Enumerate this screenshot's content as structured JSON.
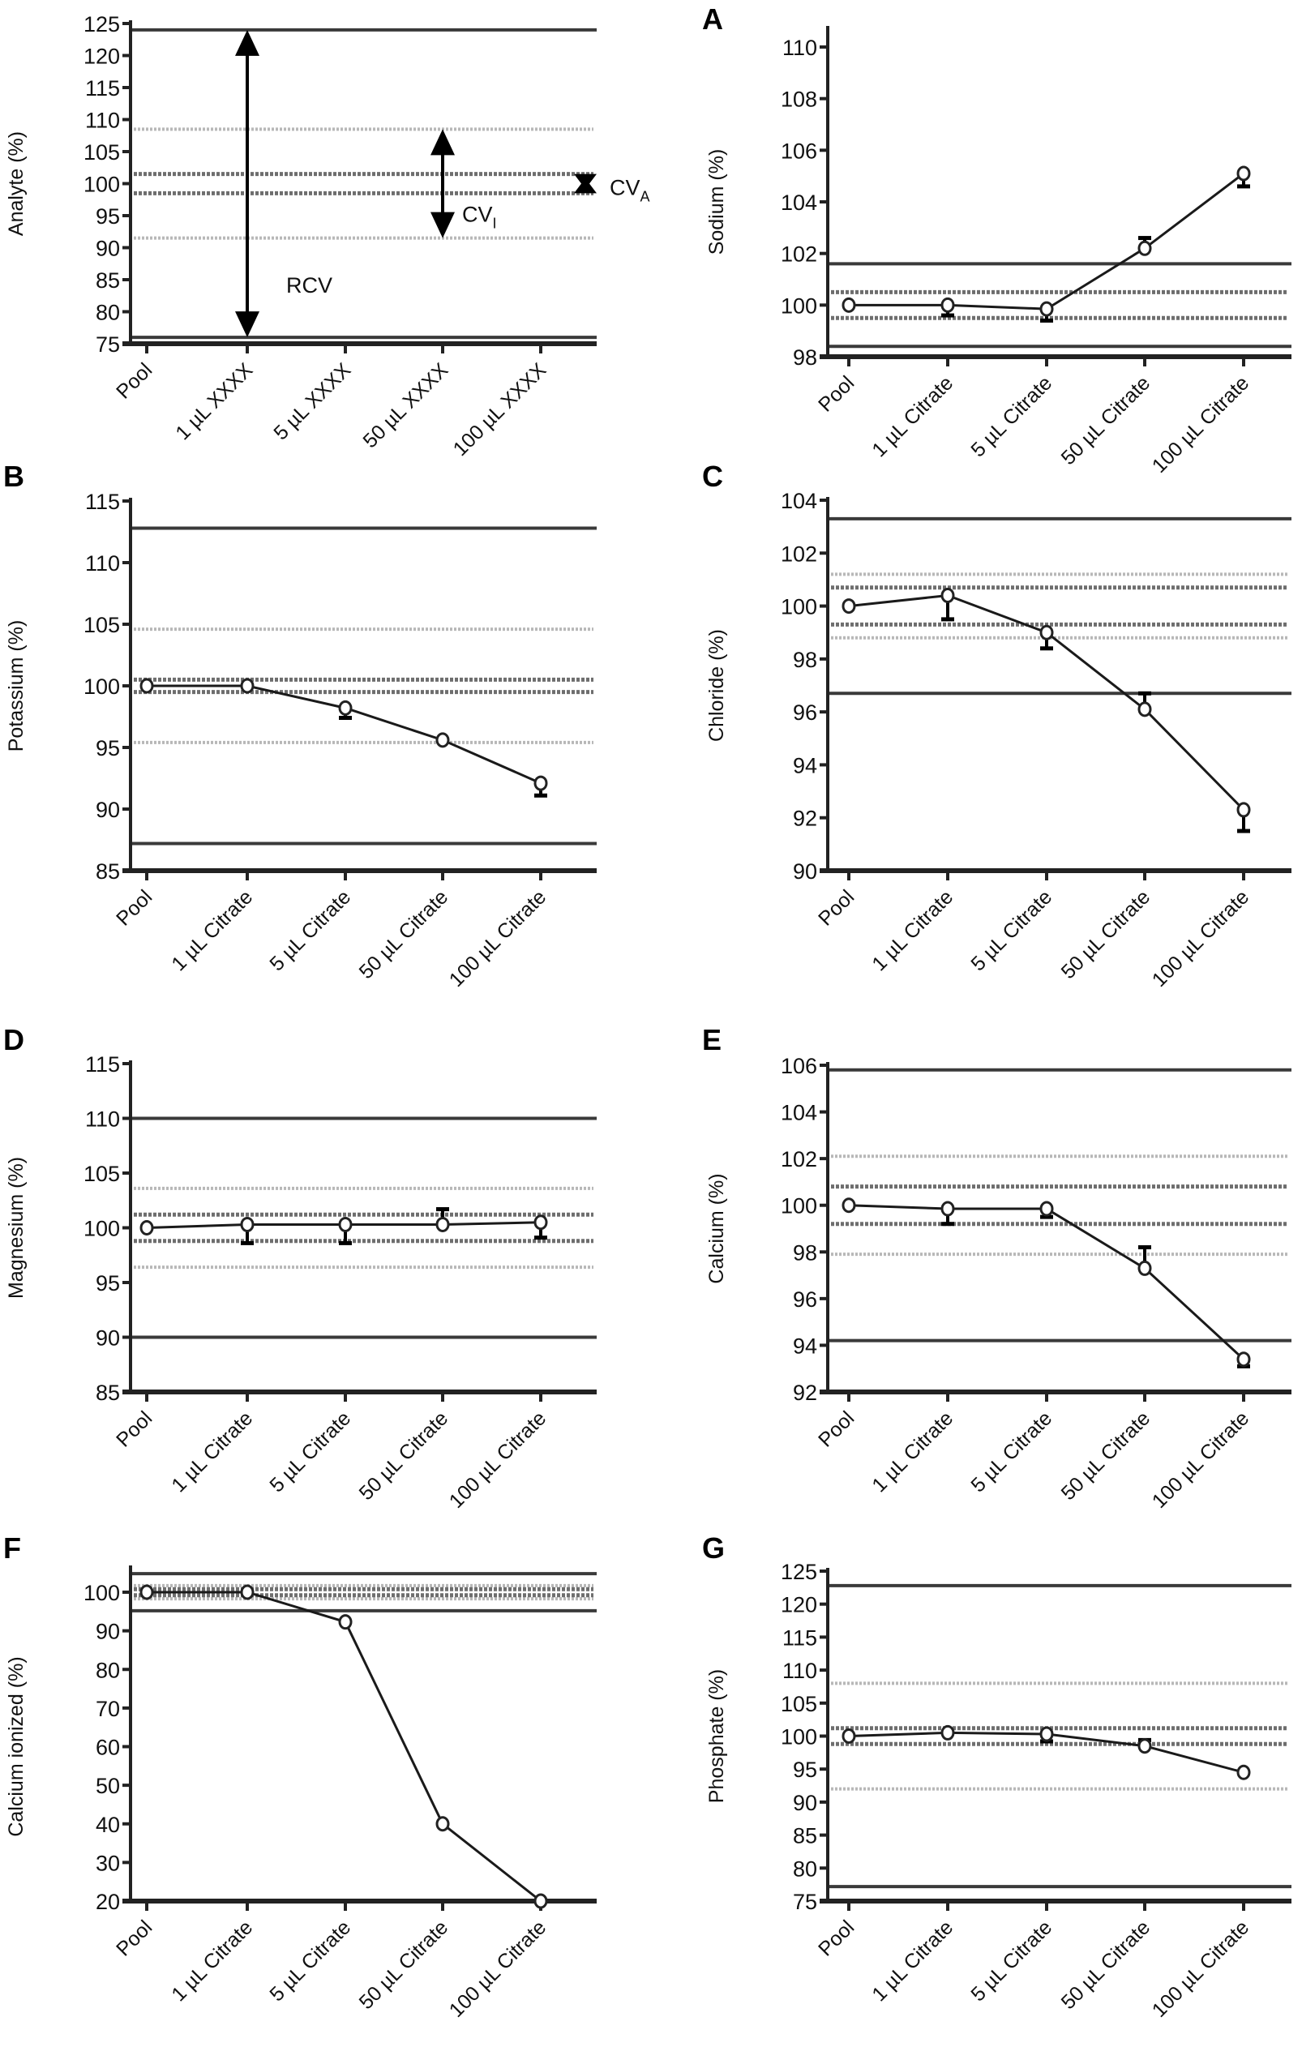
{
  "figure": {
    "panels_order": [
      "schematic",
      "A",
      "B",
      "C",
      "D",
      "E",
      "F",
      "G"
    ]
  },
  "chart_data": [
    {
      "id": "schematic",
      "type": "line",
      "panel_letter": "",
      "title": "",
      "xlabel": "",
      "ylabel": "Analyte (%)",
      "categories": [
        "Pool",
        "1 µL XXXX",
        "5 µL XXXX",
        "50 µL XXXX",
        "100 µL XXXX"
      ],
      "ylim": [
        75,
        125
      ],
      "yticks": [
        75,
        80,
        85,
        90,
        95,
        100,
        105,
        110,
        115,
        120,
        125
      ],
      "grid": false,
      "reference_lines": {
        "rcv_solid": [
          124,
          76
        ],
        "cvi_dotted": [
          108.5,
          91.5
        ],
        "cva_dashed": [
          101.5,
          98.5
        ]
      },
      "series": [],
      "annotations": [
        {
          "text": "RCV",
          "type": "double-arrow",
          "category": "1 µL XXXX",
          "from": 76,
          "to": 124
        },
        {
          "text": "CV",
          "subscript": "I",
          "type": "double-arrow",
          "category": "50 µL XXXX",
          "from": 91.5,
          "to": 108.5
        },
        {
          "text": "CV",
          "subscript": "A",
          "type": "bowtie",
          "position": "right",
          "from": 98.5,
          "to": 101.5
        }
      ]
    },
    {
      "id": "A",
      "type": "line",
      "panel_letter": "A",
      "xlabel": "",
      "ylabel": "Sodium (%)",
      "categories": [
        "Pool",
        "1 µL Citrate",
        "5 µL Citrate",
        "50 µL Citrate",
        "100 µL Citrate"
      ],
      "ylim": [
        98,
        111
      ],
      "yticks": [
        98,
        100,
        102,
        104,
        106,
        108,
        110
      ],
      "grid": false,
      "reference_lines": {
        "rcv_solid": [
          101.6,
          98.4
        ],
        "cvi_dotted": [],
        "cva_dashed": [
          100.5,
          99.5
        ]
      },
      "series": [
        {
          "name": "Sodium",
          "values": [
            100,
            100,
            99.85,
            102.2,
            105.1
          ]
        }
      ],
      "error_bars": [
        null,
        99.6,
        99.4,
        102.6,
        104.6
      ]
    },
    {
      "id": "B",
      "type": "line",
      "panel_letter": "B",
      "xlabel": "",
      "ylabel": "Potassium (%)",
      "categories": [
        "Pool",
        "1 µL Citrate",
        "5 µL Citrate",
        "50 µL Citrate",
        "100 µL Citrate"
      ],
      "ylim": [
        85,
        115
      ],
      "yticks": [
        85,
        90,
        95,
        100,
        105,
        110,
        115
      ],
      "grid": false,
      "reference_lines": {
        "rcv_solid": [
          112.8,
          87.2
        ],
        "cvi_dotted": [
          104.6,
          95.4
        ],
        "cva_dashed": [
          100.5,
          99.5
        ]
      },
      "series": [
        {
          "name": "Potassium",
          "values": [
            100,
            100,
            98.2,
            95.6,
            92.1
          ]
        }
      ],
      "error_bars": [
        null,
        null,
        97.4,
        null,
        91.1
      ]
    },
    {
      "id": "C",
      "type": "line",
      "panel_letter": "C",
      "xlabel": "",
      "ylabel": "Chloride (%)",
      "categories": [
        "Pool",
        "1 µL Citrate",
        "5 µL Citrate",
        "50 µL Citrate",
        "100 µL Citrate"
      ],
      "ylim": [
        90,
        104
      ],
      "yticks": [
        90,
        92,
        94,
        96,
        98,
        100,
        102,
        104
      ],
      "grid": false,
      "reference_lines": {
        "rcv_solid": [
          103.3,
          96.7
        ],
        "cvi_dotted": [
          101.2,
          98.8
        ],
        "cva_dashed": [
          100.7,
          99.3
        ]
      },
      "series": [
        {
          "name": "Chloride",
          "values": [
            100,
            100.4,
            99.0,
            96.1,
            92.3
          ]
        }
      ],
      "error_bars": [
        null,
        99.5,
        98.4,
        96.7,
        91.5
      ]
    },
    {
      "id": "D",
      "type": "line",
      "panel_letter": "D",
      "xlabel": "",
      "ylabel": "Magnesium (%)",
      "categories": [
        "Pool",
        "1 µL Citrate",
        "5 µL Citrate",
        "50 µL Citrate",
        "100 µL Citrate"
      ],
      "ylim": [
        85,
        115
      ],
      "yticks": [
        85,
        90,
        95,
        100,
        105,
        110,
        115
      ],
      "grid": false,
      "reference_lines": {
        "rcv_solid": [
          110,
          90
        ],
        "cvi_dotted": [
          103.6,
          96.4
        ],
        "cva_dashed": [
          101.2,
          98.8
        ]
      },
      "series": [
        {
          "name": "Magnesium",
          "values": [
            100,
            100.3,
            100.3,
            100.3,
            100.5
          ]
        }
      ],
      "error_bars": [
        null,
        98.6,
        98.6,
        101.7,
        99.1
      ]
    },
    {
      "id": "E",
      "type": "line",
      "panel_letter": "E",
      "xlabel": "",
      "ylabel": "Calcium (%)",
      "categories": [
        "Pool",
        "1 µL Citrate",
        "5 µL Citrate",
        "50 µL Citrate",
        "100 µL Citrate"
      ],
      "ylim": [
        92,
        106
      ],
      "yticks": [
        92,
        94,
        96,
        98,
        100,
        102,
        104,
        106
      ],
      "grid": false,
      "reference_lines": {
        "rcv_solid": [
          105.8,
          94.2
        ],
        "cvi_dotted": [
          102.1,
          97.9
        ],
        "cva_dashed": [
          100.8,
          99.2
        ]
      },
      "series": [
        {
          "name": "Calcium",
          "values": [
            100,
            99.85,
            99.85,
            97.3,
            93.4
          ]
        }
      ],
      "error_bars": [
        null,
        99.2,
        99.5,
        98.2,
        93.1
      ]
    },
    {
      "id": "F",
      "type": "line",
      "panel_letter": "F",
      "xlabel": "",
      "ylabel": "Calcium ionized (%)",
      "categories": [
        "Pool",
        "1 µL Citrate",
        "5 µL Citrate",
        "50 µL Citrate",
        "100 µL Citrate"
      ],
      "ylim": [
        20,
        105
      ],
      "yticks": [
        20,
        30,
        40,
        50,
        60,
        70,
        80,
        90,
        100
      ],
      "grid": false,
      "reference_lines": {
        "rcv_solid": [
          104.8,
          95.2
        ],
        "cvi_dotted": [
          101.7,
          98.3
        ],
        "cva_dashed": [
          100.8,
          99.2
        ]
      },
      "series": [
        {
          "name": "Calcium ionized",
          "values": [
            100,
            100,
            92.3,
            40,
            20
          ]
        }
      ],
      "error_bars": [
        null,
        null,
        null,
        null,
        null
      ]
    },
    {
      "id": "G",
      "type": "line",
      "panel_letter": "G",
      "xlabel": "",
      "ylabel": "Phosphate (%)",
      "categories": [
        "Pool",
        "1 µL Citrate",
        "5 µL Citrate",
        "50 µL Citrate",
        "100 µL Citrate"
      ],
      "ylim": [
        75,
        125
      ],
      "yticks": [
        75,
        80,
        85,
        90,
        95,
        100,
        105,
        110,
        115,
        120,
        125
      ],
      "grid": false,
      "reference_lines": {
        "rcv_solid": [
          122.8,
          77.2
        ],
        "cvi_dotted": [
          108,
          92
        ],
        "cva_dashed": [
          101.2,
          98.8
        ]
      },
      "series": [
        {
          "name": "Phosphate",
          "values": [
            100,
            100.5,
            100.3,
            98.5,
            94.5
          ]
        }
      ],
      "error_bars": [
        null,
        null,
        99.2,
        99.4,
        null
      ]
    }
  ]
}
